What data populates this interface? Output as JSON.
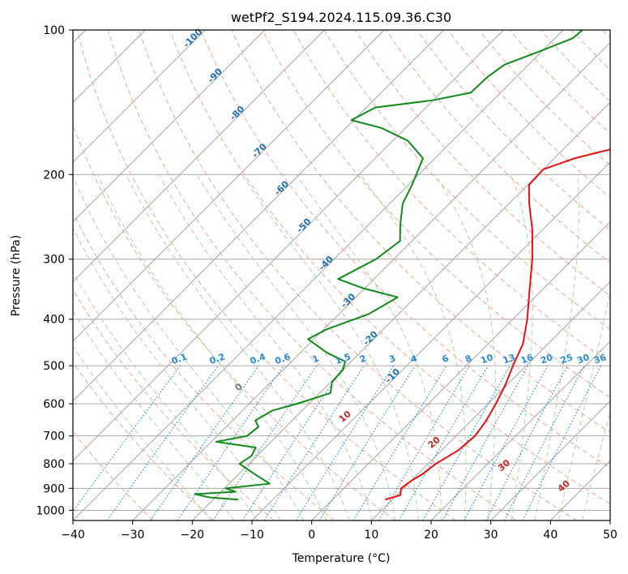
{
  "chart_data": {
    "type": "skew-t",
    "title": "wetPf2_S194.2024.115.09.36.C30",
    "xlabel": "Temperature (°C)",
    "ylabel": "Pressure (hPa)",
    "xlim": [
      -40,
      50
    ],
    "ylim": [
      1050,
      100
    ],
    "x_ticks": [
      -40,
      -30,
      -20,
      -10,
      0,
      10,
      20,
      30,
      40,
      50
    ],
    "x_tick_labels": [
      "−40",
      "−30",
      "−20",
      "−10",
      "0",
      "10",
      "20",
      "30",
      "40",
      "50"
    ],
    "y_ticks": [
      100,
      200,
      300,
      400,
      500,
      600,
      700,
      800,
      900,
      1000
    ],
    "y_tick_labels": [
      "100",
      "200",
      "300",
      "400",
      "500",
      "600",
      "700",
      "800",
      "900",
      "1000"
    ],
    "y_scale": "log",
    "grid": true,
    "colors": {
      "temperature": "#e8110f",
      "dewpoint": "#118a1a",
      "isotherm": "#9a9a9a",
      "dry_adiabat": "#f4a48a",
      "moist_adiabat": "#a9d6a4",
      "mixing_ratio": "#2a8bd6",
      "hgrid": "#aaaaaa",
      "isotherm_label": "#1f6fb0",
      "moist_label": "#c4282a",
      "zero_label": "#777777"
    },
    "series": [
      {
        "name": "temperature",
        "points": [
          {
            "p": 950,
            "t": 8.8
          },
          {
            "p": 930,
            "t": 10.6
          },
          {
            "p": 900,
            "t": 9.6
          },
          {
            "p": 870,
            "t": 10.0
          },
          {
            "p": 840,
            "t": 10.8
          },
          {
            "p": 800,
            "t": 11.3
          },
          {
            "p": 750,
            "t": 12.8
          },
          {
            "p": 700,
            "t": 13.2
          },
          {
            "p": 650,
            "t": 12.5
          },
          {
            "p": 600,
            "t": 11.3
          },
          {
            "p": 550,
            "t": 9.8
          },
          {
            "p": 500,
            "t": 7.8
          },
          {
            "p": 450,
            "t": 5.8
          },
          {
            "p": 400,
            "t": 2.4
          },
          {
            "p": 350,
            "t": -1.9
          },
          {
            "p": 300,
            "t": -6.8
          },
          {
            "p": 260,
            "t": -11.8
          },
          {
            "p": 230,
            "t": -16.6
          },
          {
            "p": 210,
            "t": -19.8
          },
          {
            "p": 195,
            "t": -20.0
          },
          {
            "p": 185,
            "t": -16.6
          },
          {
            "p": 175,
            "t": -10.8
          },
          {
            "p": 160,
            "t": -3.5
          },
          {
            "p": 150,
            "t": -0.2
          },
          {
            "p": 135,
            "t": 3.3
          },
          {
            "p": 125,
            "t": 7.0
          },
          {
            "p": 115,
            "t": 9.2
          },
          {
            "p": 108,
            "t": 10.5
          },
          {
            "p": 100,
            "t": 12.0
          }
        ]
      },
      {
        "name": "dewpoint",
        "points": [
          {
            "p": 950,
            "t": -15.8
          },
          {
            "p": 940,
            "t": -21.0
          },
          {
            "p": 925,
            "t": -24.0
          },
          {
            "p": 915,
            "t": -17.6
          },
          {
            "p": 900,
            "t": -19.8
          },
          {
            "p": 880,
            "t": -13.2
          },
          {
            "p": 840,
            "t": -17.4
          },
          {
            "p": 800,
            "t": -21.6
          },
          {
            "p": 770,
            "t": -20.9
          },
          {
            "p": 740,
            "t": -21.6
          },
          {
            "p": 720,
            "t": -29.2
          },
          {
            "p": 700,
            "t": -25.0
          },
          {
            "p": 670,
            "t": -24.6
          },
          {
            "p": 650,
            "t": -26.2
          },
          {
            "p": 620,
            "t": -25.0
          },
          {
            "p": 600,
            "t": -22.0
          },
          {
            "p": 570,
            "t": -18.2
          },
          {
            "p": 540,
            "t": -19.8
          },
          {
            "p": 510,
            "t": -20.0
          },
          {
            "p": 490,
            "t": -21.0
          },
          {
            "p": 470,
            "t": -25.5
          },
          {
            "p": 440,
            "t": -31.0
          },
          {
            "p": 420,
            "t": -29.5
          },
          {
            "p": 390,
            "t": -25.0
          },
          {
            "p": 360,
            "t": -23.0
          },
          {
            "p": 345,
            "t": -30.2
          },
          {
            "p": 330,
            "t": -36.0
          },
          {
            "p": 300,
            "t": -33.0
          },
          {
            "p": 275,
            "t": -32.0
          },
          {
            "p": 255,
            "t": -34.6
          },
          {
            "p": 230,
            "t": -37.8
          },
          {
            "p": 210,
            "t": -39.4
          },
          {
            "p": 200,
            "t": -40.4
          },
          {
            "p": 185,
            "t": -42.0
          },
          {
            "p": 170,
            "t": -47.5
          },
          {
            "p": 160,
            "t": -54.0
          },
          {
            "p": 154,
            "t": -60.4
          },
          {
            "p": 145,
            "t": -58.5
          },
          {
            "p": 140,
            "t": -50.0
          },
          {
            "p": 135,
            "t": -45.0
          },
          {
            "p": 125,
            "t": -44.8
          },
          {
            "p": 118,
            "t": -44.0
          },
          {
            "p": 110,
            "t": -40.0
          },
          {
            "p": 104,
            "t": -37.0
          },
          {
            "p": 100,
            "t": -36.8
          }
        ]
      }
    ],
    "isotherm_labels": [
      "-100",
      "-90",
      "-80",
      "-70",
      "-60",
      "-50",
      "-40",
      "-30",
      "-20",
      "-10"
    ],
    "isotherm_label_values": [
      -100,
      -90,
      -80,
      -70,
      -60,
      -50,
      -40,
      -30,
      -20,
      -10
    ],
    "mixing_ratio_labels": [
      "0.1",
      "0.2",
      "0.4",
      "0.6",
      "1",
      "1.5",
      "2",
      "3",
      "4",
      "6",
      "8",
      "10",
      "13",
      "16",
      "20",
      "25",
      "30",
      "36"
    ],
    "mixing_ratio_values": [
      0.1,
      0.2,
      0.4,
      0.6,
      1,
      1.5,
      2,
      3,
      4,
      6,
      8,
      10,
      13,
      16,
      20,
      25,
      30,
      36
    ],
    "moist_adiabat_labels": [
      "0",
      "10",
      "20",
      "30",
      "40"
    ],
    "moist_adiabat_values": [
      0,
      10,
      20,
      30,
      40
    ]
  }
}
